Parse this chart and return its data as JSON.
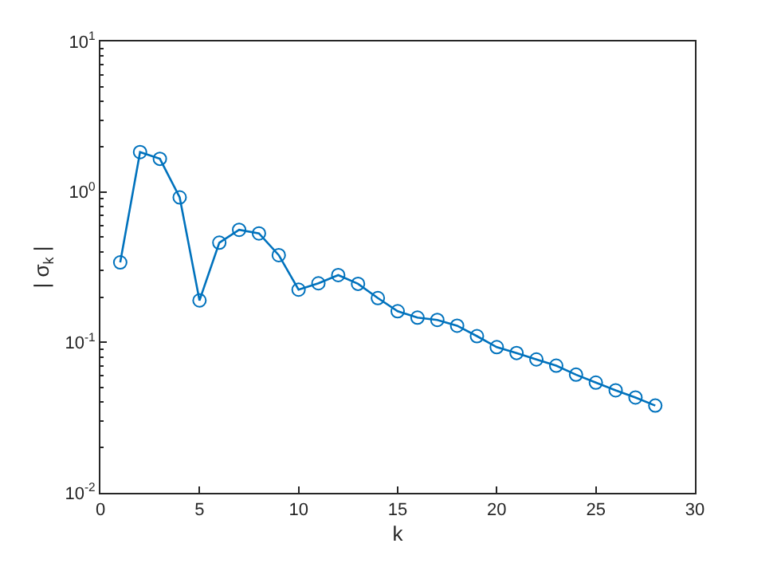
{
  "chart_data": {
    "type": "line",
    "xlabel": "k",
    "ylabel": "| σ$_{k}$ |",
    "log": "y",
    "marker": "circle",
    "line_style": "solid",
    "x": [
      1,
      2,
      3,
      4,
      5,
      6,
      7,
      8,
      9,
      10,
      11,
      12,
      13,
      14,
      15,
      16,
      17,
      18,
      19,
      20,
      21,
      22,
      23,
      24,
      25,
      26,
      27,
      28
    ],
    "series": [
      {
        "color": "#0072bd",
        "values": [
          0.34,
          1.84,
          1.66,
          0.92,
          0.19,
          0.46,
          0.56,
          0.53,
          0.38,
          0.224,
          0.247,
          0.28,
          0.245,
          0.197,
          0.161,
          0.146,
          0.141,
          0.129,
          0.11,
          0.093,
          0.085,
          0.077,
          0.07,
          0.061,
          0.054,
          0.048,
          0.043,
          0.038
        ]
      }
    ],
    "xlim": [
      0,
      30
    ],
    "xticks": [
      0,
      5,
      10,
      15,
      20,
      25,
      30
    ],
    "ylim": [
      0.01,
      10
    ],
    "yticks": [
      {
        "value": 0.01,
        "label": "10$^{-2}$"
      },
      {
        "value": 0.1,
        "label": "10$^{-1}$"
      },
      {
        "value": 1,
        "label": "10$^{0}$"
      },
      {
        "value": 10,
        "label": "10$^{1}$"
      }
    ]
  }
}
